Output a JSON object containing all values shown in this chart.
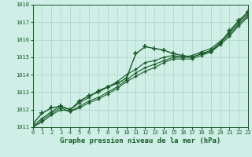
{
  "title": "Graphe pression niveau de la mer (hPa)",
  "bg_color": "#ceeee6",
  "grid_color": "#aad4c8",
  "line_color": "#1a5c2a",
  "ylim": [
    1011,
    1018
  ],
  "xlim": [
    0,
    23
  ],
  "yticks": [
    1011,
    1012,
    1013,
    1014,
    1015,
    1016,
    1017,
    1018
  ],
  "xticks": [
    0,
    1,
    2,
    3,
    4,
    5,
    6,
    7,
    8,
    9,
    10,
    11,
    12,
    13,
    14,
    15,
    16,
    17,
    18,
    19,
    20,
    21,
    22,
    23
  ],
  "series": [
    [
      1011.2,
      1011.8,
      1012.1,
      1012.2,
      1012.0,
      1012.5,
      1012.8,
      1013.0,
      1013.3,
      1013.5,
      1013.8,
      1015.2,
      1015.6,
      1015.5,
      1015.4,
      1015.2,
      1015.1,
      1015.0,
      1015.2,
      1015.3,
      1015.8,
      1016.5,
      1017.1,
      1017.6
    ],
    [
      1011.1,
      1011.5,
      1011.9,
      1012.2,
      1012.0,
      1012.4,
      1012.7,
      1013.1,
      1013.3,
      1013.6,
      1014.0,
      1014.3,
      1014.7,
      1014.8,
      1015.0,
      1015.1,
      1015.0,
      1015.1,
      1015.3,
      1015.5,
      1015.9,
      1016.4,
      1017.0,
      1017.5
    ],
    [
      1011.0,
      1011.4,
      1011.8,
      1012.1,
      1011.9,
      1012.2,
      1012.5,
      1012.7,
      1013.0,
      1013.3,
      1013.7,
      1014.1,
      1014.4,
      1014.6,
      1014.8,
      1015.0,
      1015.0,
      1015.0,
      1015.2,
      1015.4,
      1015.8,
      1016.3,
      1016.9,
      1017.4
    ],
    [
      1011.0,
      1011.3,
      1011.7,
      1012.0,
      1011.9,
      1012.1,
      1012.4,
      1012.6,
      1012.9,
      1013.2,
      1013.6,
      1013.9,
      1014.2,
      1014.4,
      1014.7,
      1014.9,
      1014.9,
      1014.9,
      1015.1,
      1015.3,
      1015.7,
      1016.2,
      1016.8,
      1017.3
    ]
  ]
}
